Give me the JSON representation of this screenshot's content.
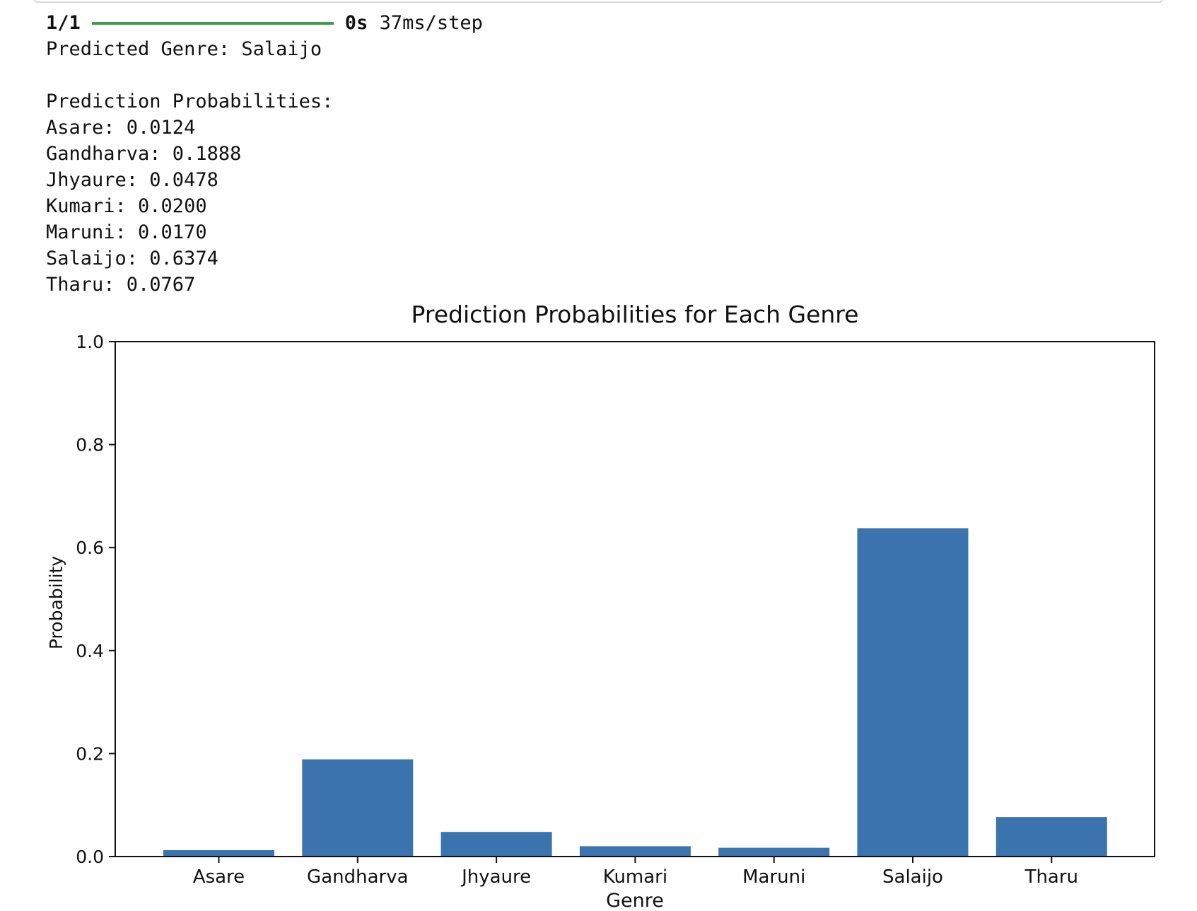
{
  "console": {
    "progress": {
      "step": "1/1",
      "fraction": 1.0,
      "time": "0s",
      "rate": "37ms/step"
    },
    "predicted_line": "Predicted Genre: Salaijo",
    "probs_header": "Prediction Probabilities:",
    "prob_lines": [
      "Asare: 0.0124",
      "Gandharva: 0.1888",
      "Jhyaure: 0.0478",
      "Kumari: 0.0200",
      "Maruni: 0.0170",
      "Salaijo: 0.6374",
      "Tharu: 0.0767"
    ]
  },
  "chart_data": {
    "type": "bar",
    "title": "Prediction Probabilities for Each Genre",
    "xlabel": "Genre",
    "ylabel": "Probability",
    "categories": [
      "Asare",
      "Gandharva",
      "Jhyaure",
      "Kumari",
      "Maruni",
      "Salaijo",
      "Tharu"
    ],
    "values": [
      0.0124,
      0.1888,
      0.0478,
      0.02,
      0.017,
      0.6374,
      0.0767
    ],
    "ylim": [
      0,
      1.0
    ],
    "yticks": [
      "0.0",
      "0.2",
      "0.4",
      "0.6",
      "0.8",
      "1.0"
    ],
    "grid": false,
    "bar_color": "#3a73ad"
  }
}
